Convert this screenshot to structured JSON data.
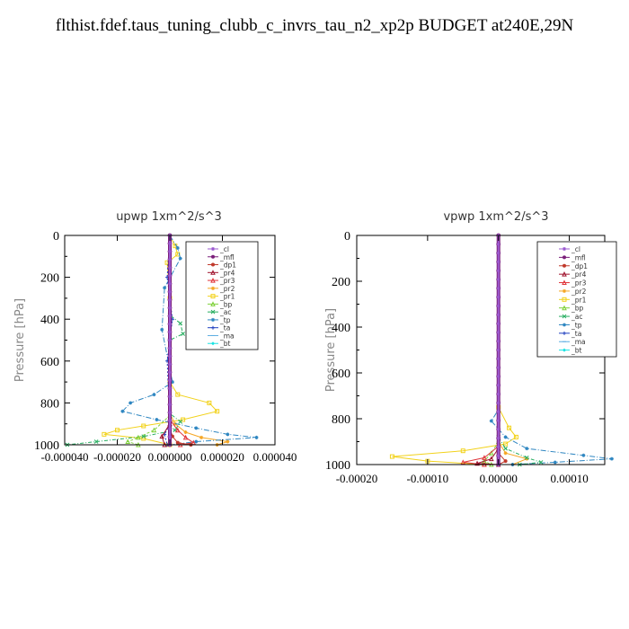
{
  "page": {
    "title": "flthist.fdef.taus_tuning_clubb_c_invrs_tau_n2_xp2p  BUDGET at240E,29N"
  },
  "legend_styles": [
    {
      "name": "_cl",
      "color": "#9b59d0",
      "marker": "star"
    },
    {
      "name": "_mfl",
      "color": "#7a1f7a",
      "marker": "dot"
    },
    {
      "name": "_dp1",
      "color": "#c0392b",
      "marker": "dot"
    },
    {
      "name": "_pr4",
      "color": "#a0152f",
      "marker": "tri"
    },
    {
      "name": "_pr3",
      "color": "#e0353a",
      "marker": "tri"
    },
    {
      "name": "_pr2",
      "color": "#f5a623",
      "marker": "star"
    },
    {
      "name": "_pr1",
      "color": "#f2d21b",
      "marker": "square"
    },
    {
      "name": "_bp",
      "color": "#7fd13b",
      "marker": "tri"
    },
    {
      "name": "_ac",
      "color": "#27ae60",
      "marker": "cross"
    },
    {
      "name": "_tp",
      "color": "#2e86c1",
      "marker": "star"
    },
    {
      "name": "_ta",
      "color": "#1f3fbf",
      "marker": "plus"
    },
    {
      "name": "_ma",
      "color": "#5dade2",
      "marker": "dash"
    },
    {
      "name": "_bt",
      "color": "#19e3e3",
      "marker": "diamond"
    }
  ],
  "chart_data": [
    {
      "type": "line",
      "title": "upwp   1xm^2/s^3",
      "ylabel": "Pressure [hPa]",
      "xlim": [
        -4e-05,
        4e-05
      ],
      "ylim": [
        1000,
        0
      ],
      "x_ticks": [
        -4e-05,
        -2e-05,
        0.0,
        2e-05,
        4e-05
      ],
      "x_tick_labels": [
        "-0.000040",
        "-0.000020",
        "0.000000",
        "0.000020",
        "0.000040"
      ],
      "y_ticks": [
        0,
        200,
        400,
        600,
        800,
        1000
      ],
      "y_tick_labels": [
        "0",
        "200",
        "400",
        "600",
        "800",
        "1000"
      ],
      "legend": [
        "_cl",
        "_mfl",
        "_dp1",
        "_pr4",
        "_pr3",
        "_pr2",
        "_pr1",
        "_bp",
        "_ac",
        "_tp",
        "_ta",
        "_ma",
        "_bt"
      ],
      "series": [
        {
          "name": "_pr1",
          "points": [
            [
              0,
              0
            ],
            [
              2e-06,
              50
            ],
            [
              3e-06,
              90
            ],
            [
              -1e-06,
              130
            ],
            [
              0,
              300
            ],
            [
              0,
              700
            ],
            [
              3e-06,
              760
            ],
            [
              1.5e-05,
              800
            ],
            [
              1.8e-05,
              840
            ],
            [
              5e-06,
              880
            ],
            [
              -1e-05,
              910
            ],
            [
              -2e-05,
              930
            ],
            [
              -2.5e-05,
              950
            ],
            [
              -1e-05,
              970
            ],
            [
              0,
              1000
            ]
          ]
        },
        {
          "name": "_pr2",
          "points": [
            [
              0,
              0
            ],
            [
              0,
              850
            ],
            [
              2e-06,
              900
            ],
            [
              6e-06,
              940
            ],
            [
              1.2e-05,
              965
            ],
            [
              2.2e-05,
              985
            ],
            [
              1.8e-05,
              1000
            ]
          ]
        },
        {
          "name": "_tp",
          "points": [
            [
              0,
              0
            ],
            [
              3e-06,
              60
            ],
            [
              4e-06,
              110
            ],
            [
              -2e-06,
              250
            ],
            [
              -3e-06,
              450
            ],
            [
              1e-06,
              700
            ],
            [
              -6e-06,
              760
            ],
            [
              -1.5e-05,
              800
            ],
            [
              -1.8e-05,
              840
            ],
            [
              -5e-06,
              880
            ],
            [
              1e-05,
              920
            ],
            [
              2.2e-05,
              950
            ],
            [
              3.3e-05,
              965
            ],
            [
              1e-05,
              985
            ],
            [
              0,
              1000
            ]
          ]
        },
        {
          "name": "_ac",
          "points": [
            [
              0,
              0
            ],
            [
              0,
              380
            ],
            [
              4e-06,
              420
            ],
            [
              5e-06,
              470
            ],
            [
              0,
              500
            ],
            [
              0,
              850
            ],
            [
              4e-06,
              890
            ],
            [
              2e-06,
              930
            ],
            [
              -1e-05,
              960
            ],
            [
              -2.8e-05,
              985
            ],
            [
              -3.9e-05,
              1000
            ]
          ]
        },
        {
          "name": "_bp",
          "points": [
            [
              0,
              0
            ],
            [
              0,
              860
            ],
            [
              -6e-06,
              930
            ],
            [
              -1.2e-05,
              965
            ],
            [
              -1.6e-05,
              985
            ],
            [
              -1.2e-05,
              1000
            ]
          ]
        },
        {
          "name": "_ta",
          "points": [
            [
              0,
              0
            ],
            [
              -1e-06,
              200
            ],
            [
              1e-06,
              400
            ],
            [
              -1e-06,
              600
            ],
            [
              0,
              900
            ],
            [
              -2e-06,
              950
            ],
            [
              -1e-06,
              1000
            ]
          ]
        },
        {
          "name": "_pr3",
          "points": [
            [
              0,
              0
            ],
            [
              0,
              880
            ],
            [
              3e-06,
              930
            ],
            [
              6e-06,
              965
            ],
            [
              9e-06,
              990
            ],
            [
              4e-06,
              1000
            ]
          ]
        },
        {
          "name": "_pr4",
          "points": [
            [
              0,
              0
            ],
            [
              0,
              900
            ],
            [
              -3e-06,
              960
            ],
            [
              -2e-06,
              1000
            ]
          ]
        },
        {
          "name": "_dp1",
          "points": [
            [
              0,
              0
            ],
            [
              0,
              920
            ],
            [
              1e-06,
              960
            ],
            [
              3e-06,
              990
            ],
            [
              8e-06,
              1000
            ]
          ]
        },
        {
          "name": "_mfl",
          "points": [
            [
              0,
              0
            ],
            [
              0,
              1000
            ]
          ]
        },
        {
          "name": "_cl",
          "points": [
            [
              0,
              0
            ],
            [
              0,
              1000
            ]
          ]
        }
      ]
    },
    {
      "type": "line",
      "title": "vpwp   1xm^2/s^3",
      "ylabel": "Pressure [hPa]",
      "xlim": [
        -0.0002,
        0.00015
      ],
      "ylim": [
        1000,
        0
      ],
      "x_ticks": [
        -0.0002,
        -0.0001,
        0.0,
        0.0001
      ],
      "x_tick_labels": [
        "-0.00020",
        "-0.00010",
        "0.00000",
        "0.00010"
      ],
      "y_ticks": [
        0,
        200,
        400,
        600,
        800,
        1000
      ],
      "y_tick_labels": [
        "0",
        "200",
        "400",
        "600",
        "800",
        "1000"
      ],
      "legend": [
        "_cl",
        "_mfl",
        "_dp1",
        "_pr4",
        "_pr3",
        "_pr2",
        "_pr1",
        "_bp",
        "_ac",
        "_tp",
        "_ta",
        "_ma",
        "_bt"
      ],
      "series": [
        {
          "name": "_pr1",
          "points": [
            [
              0,
              0
            ],
            [
              0,
              750
            ],
            [
              1.5e-05,
              840
            ],
            [
              2.5e-05,
              880
            ],
            [
              1e-05,
              910
            ],
            [
              -5e-05,
              940
            ],
            [
              -0.00015,
              965
            ],
            [
              -0.0001,
              985
            ],
            [
              -2e-05,
              1000
            ]
          ]
        },
        {
          "name": "_pr2",
          "points": [
            [
              0,
              0
            ],
            [
              0,
              900
            ],
            [
              1e-05,
              950
            ],
            [
              4e-05,
              975
            ],
            [
              2e-05,
              1000
            ]
          ]
        },
        {
          "name": "_tp",
          "points": [
            [
              0,
              0
            ],
            [
              0,
              760
            ],
            [
              -1e-05,
              810
            ],
            [
              1e-05,
              880
            ],
            [
              4e-05,
              930
            ],
            [
              0.00012,
              960
            ],
            [
              0.00016,
              975
            ],
            [
              8e-05,
              990
            ],
            [
              2e-05,
              1000
            ]
          ]
        },
        {
          "name": "_ac",
          "points": [
            [
              0,
              0
            ],
            [
              0,
              880
            ],
            [
              1e-05,
              930
            ],
            [
              4e-05,
              970
            ],
            [
              6e-05,
              990
            ],
            [
              3e-05,
              1000
            ]
          ]
        },
        {
          "name": "_bp",
          "points": [
            [
              0,
              0
            ],
            [
              0,
              900
            ],
            [
              -1e-05,
              950
            ],
            [
              -2e-05,
              985
            ],
            [
              -1e-05,
              1000
            ]
          ]
        },
        {
          "name": "_pr3",
          "points": [
            [
              0,
              0
            ],
            [
              0,
              920
            ],
            [
              -2e-05,
              970
            ],
            [
              -5e-05,
              990
            ],
            [
              -2e-05,
              1000
            ]
          ]
        },
        {
          "name": "_pr4",
          "points": [
            [
              0,
              0
            ],
            [
              0,
              930
            ],
            [
              -1e-05,
              975
            ],
            [
              -3e-05,
              995
            ],
            [
              0,
              1000
            ]
          ]
        },
        {
          "name": "_dp1",
          "points": [
            [
              0,
              0
            ],
            [
              0,
              950
            ],
            [
              1e-05,
              985
            ],
            [
              0,
              1000
            ]
          ]
        },
        {
          "name": "_ta",
          "points": [
            [
              0,
              0
            ],
            [
              0,
              1000
            ]
          ]
        },
        {
          "name": "_mfl",
          "points": [
            [
              0,
              0
            ],
            [
              0,
              1000
            ]
          ]
        },
        {
          "name": "_cl",
          "points": [
            [
              0,
              0
            ],
            [
              0,
              1000
            ]
          ]
        }
      ]
    }
  ]
}
